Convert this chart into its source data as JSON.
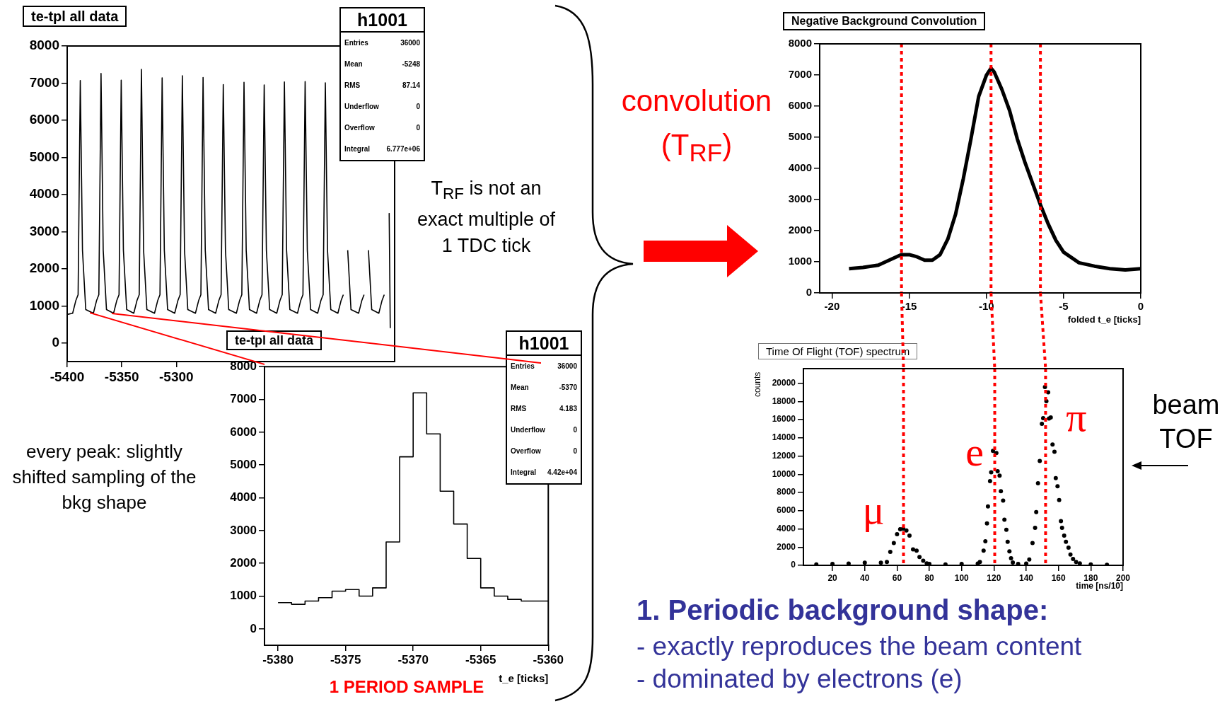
{
  "chart_data": [
    {
      "type": "line",
      "title": "te-tpl  all data",
      "xlim": [
        -5400,
        -5100
      ],
      "xticks": [
        -5400,
        -5350,
        -5300
      ],
      "ylim": [
        -500,
        8000
      ],
      "yticks": [
        0,
        1000,
        2000,
        3000,
        4000,
        5000,
        6000,
        7000,
        8000
      ],
      "series": [
        {
          "color": "#000000",
          "x": [
            -5400,
            -5395,
            -5392,
            -5390,
            -5388,
            -5386,
            -5383,
            -5376,
            -5373,
            -5371,
            -5369,
            -5367,
            -5364,
            -5357.5,
            -5354.5,
            -5352.5,
            -5350.5,
            -5348.5,
            -5345.5,
            -5339,
            -5336,
            -5334,
            -5332,
            -5330,
            -5327,
            -5320,
            -5317,
            -5315,
            -5313,
            -5311,
            -5308,
            -5301.5,
            -5298.5,
            -5296.5,
            -5294.5,
            -5292.5,
            -5289.5,
            -5282.5,
            -5279.5,
            -5277.5,
            -5275.5,
            -5273.5,
            -5270.5,
            -5264,
            -5261,
            -5259,
            -5257,
            -5255,
            -5252,
            -5245,
            -5242,
            -5240,
            -5238,
            -5236,
            -5233,
            -5226.5,
            -5223.5,
            -5221.5,
            -5219.5,
            -5217.5,
            -5214.5,
            -5208,
            -5205,
            -5203,
            -5201,
            -5199,
            -5196,
            -5189,
            -5186,
            -5184,
            -5182,
            -5180,
            -5177,
            -5170.5,
            -5167.5,
            -5165.5,
            -5163.5,
            -5161.5,
            -5158.5,
            -5152,
            -5149,
            -5147,
            -5145,
            -5143,
            -5140,
            -5133,
            -5130,
            -5128,
            -5126,
            -5124,
            -5121,
            -5114.5,
            -5111.5,
            -5109.5,
            -5107.5,
            -5105,
            -5104
          ],
          "values": [
            770,
            800,
            1150,
            1300,
            7070,
            2500,
            900,
            800,
            1150,
            1300,
            7260,
            2500,
            900,
            800,
            1150,
            1300,
            7080,
            2500,
            900,
            800,
            1150,
            1300,
            7370,
            2500,
            900,
            800,
            1150,
            1300,
            7140,
            2500,
            900,
            800,
            1150,
            1300,
            7200,
            2500,
            900,
            800,
            1150,
            1300,
            7150,
            2500,
            900,
            800,
            1150,
            1300,
            6960,
            2500,
            900,
            800,
            1150,
            1300,
            7020,
            2500,
            900,
            800,
            1150,
            1300,
            6950,
            2500,
            900,
            800,
            1150,
            1300,
            7030,
            2500,
            900,
            800,
            1150,
            1300,
            7040,
            2500,
            900,
            800,
            1150,
            1300,
            7010,
            2500,
            900,
            800,
            1150,
            1300,
            null,
            2500,
            900,
            800,
            1150,
            1300,
            null,
            2500,
            900,
            800,
            1150,
            1300,
            null,
            3500,
            400
          ]
        }
      ],
      "annotations": [
        "h1001",
        "Entries 36000",
        "Mean -5248",
        "RMS 87.14",
        "Underflow 0",
        "Overflow 0",
        "Integral 6.777e+06",
        "every peak: slightly shifted sampling of the bkg shape"
      ]
    },
    {
      "type": "step",
      "title": "te-tpl  all data",
      "xlabel": "t_e [ticks]",
      "xlim": [
        -5381,
        -5360
      ],
      "xticks": [
        -5380,
        -5375,
        -5370,
        -5365,
        -5360
      ],
      "ylim": [
        -500,
        8000
      ],
      "yticks": [
        0,
        1000,
        2000,
        3000,
        4000,
        5000,
        6000,
        7000,
        8000
      ],
      "series": [
        {
          "color": "#000000",
          "x": [
            -5380,
            -5379,
            -5378,
            -5377,
            -5376,
            -5375,
            -5374,
            -5373,
            -5372,
            -5371,
            -5370,
            -5369,
            -5368,
            -5367,
            -5366,
            -5365,
            -5364,
            -5363,
            -5362,
            -5361,
            -5360
          ],
          "values": [
            800,
            800,
            750,
            850,
            950,
            1150,
            1200,
            1000,
            1250,
            2650,
            5250,
            7200,
            5950,
            4200,
            3200,
            2150,
            1250,
            1000,
            900,
            850,
            850
          ]
        }
      ],
      "annotations": [
        "h1001",
        "Entries 36000",
        "Mean -5370",
        "RMS 4.183",
        "Underflow 0",
        "Overflow 0",
        "Integral 4.42e+04",
        "1 PERIOD SAMPLE",
        "T$_{RF}$ is not an exact multiple of 1 TDC tick"
      ]
    },
    {
      "type": "line",
      "title": "Negative Background Convolution",
      "xlabel": "folded t_e [ticks]",
      "xlim": [
        -20.8,
        0
      ],
      "xticks": [
        -20,
        -15,
        -10,
        -5,
        0
      ],
      "ylim": [
        0,
        8000
      ],
      "yticks": [
        0,
        1000,
        2000,
        3000,
        4000,
        5000,
        6000,
        7000,
        8000
      ],
      "series": [
        {
          "color": "#000000",
          "x": [
            -18.9,
            -18,
            -17,
            -16,
            -15.5,
            -15,
            -14.5,
            -14,
            -13.5,
            -13,
            -12.5,
            -12,
            -11.5,
            -11,
            -10.5,
            -10,
            -9.7,
            -9.5,
            -9,
            -8.5,
            -8,
            -7.5,
            -7,
            -6.5,
            -6,
            -5.5,
            -5,
            -4,
            -3,
            -2,
            -1,
            0
          ],
          "values": [
            780,
            820,
            890,
            1120,
            1230,
            1230,
            1160,
            1050,
            1050,
            1230,
            1730,
            2520,
            3660,
            4950,
            6310,
            6990,
            7220,
            7100,
            6540,
            5860,
            4950,
            4190,
            3510,
            2830,
            2220,
            1690,
            1310,
            970,
            860,
            780,
            740,
            780
          ]
        }
      ],
      "ref_lines": [
        {
          "axis": "x",
          "value": -15.5,
          "color": "#ff0000",
          "line_style": "dotted"
        },
        {
          "axis": "x",
          "value": -9.7,
          "color": "#ff0000",
          "line_style": "dotted"
        },
        {
          "axis": "x",
          "value": -6.5,
          "color": "#ff0000",
          "line_style": "dotted"
        }
      ],
      "annotations": [
        "convolution (T$_{RF}$)"
      ]
    },
    {
      "type": "scatter",
      "title": "Time Of Flight (TOF) spectrum",
      "xlabel": "time [ns/10]",
      "ylabel": "counts",
      "xlim": [
        2,
        200
      ],
      "xticks": [
        20,
        40,
        60,
        80,
        100,
        120,
        140,
        160,
        180,
        200
      ],
      "ylim": [
        0,
        21600
      ],
      "yticks": [
        0,
        2000,
        4000,
        6000,
        8000,
        10000,
        12000,
        14000,
        16000,
        18000,
        20000
      ],
      "marker": "circle",
      "series": [
        {
          "color": "#000000",
          "x": [
            10,
            20,
            30,
            40,
            50,
            53.7,
            55.8,
            58,
            60,
            61.9,
            63.8,
            65.8,
            67.7,
            69.9,
            72.1,
            73.9,
            76.2,
            78.4,
            80,
            90,
            100,
            110,
            111.3,
            113.6,
            114.7,
            115.7,
            116.3,
            117.6,
            118.3,
            119.4,
            121.5,
            122.3,
            123.5,
            124.3,
            125.7,
            126.5,
            127.7,
            128.5,
            129.6,
            130.6,
            131.7,
            135,
            140,
            141.9,
            143.9,
            145.5,
            146.2,
            147.3,
            148.4,
            149.7,
            150.5,
            151.6,
            152.5,
            153.6,
            154.1,
            155.2,
            156.3,
            157.5,
            158.3,
            159.4,
            160.4,
            161.5,
            162.2,
            163.5,
            164.6,
            166.2,
            167.4,
            169,
            170.9,
            173.2,
            180,
            190
          ],
          "values": [
            100,
            150,
            200,
            300,
            300,
            360,
            1470,
            2440,
            3410,
            3970,
            4020,
            3830,
            3270,
            1750,
            1610,
            920,
            500,
            220,
            150,
            100,
            150,
            200,
            360,
            1610,
            2640,
            4600,
            6460,
            9240,
            10210,
            12570,
            12340,
            10340,
            9850,
            8130,
            7100,
            5020,
            3910,
            2580,
            1530,
            780,
            310,
            150,
            200,
            640,
            2440,
            4110,
            5850,
            9020,
            11460,
            15530,
            16170,
            19580,
            18030,
            19000,
            16120,
            16230,
            13260,
            12480,
            9570,
            8680,
            7160,
            4850,
            4110,
            3270,
            2580,
            1940,
            1190,
            690,
            360,
            220,
            100,
            50
          ]
        }
      ],
      "ref_lines": [
        {
          "axis": "x",
          "value": 64,
          "color": "#ff0000",
          "line_style": "dotted"
        },
        {
          "axis": "x",
          "value": 120.5,
          "color": "#ff0000",
          "line_style": "dotted"
        },
        {
          "axis": "x",
          "value": 152,
          "color": "#ff0000",
          "line_style": "dotted"
        }
      ],
      "annotations": [
        "μ",
        "e",
        "π",
        "beam TOF",
        "1. Periodic background shape:",
        "- exactly reproduces the beam content",
        "- dominated by electrons (e)"
      ]
    }
  ]
}
